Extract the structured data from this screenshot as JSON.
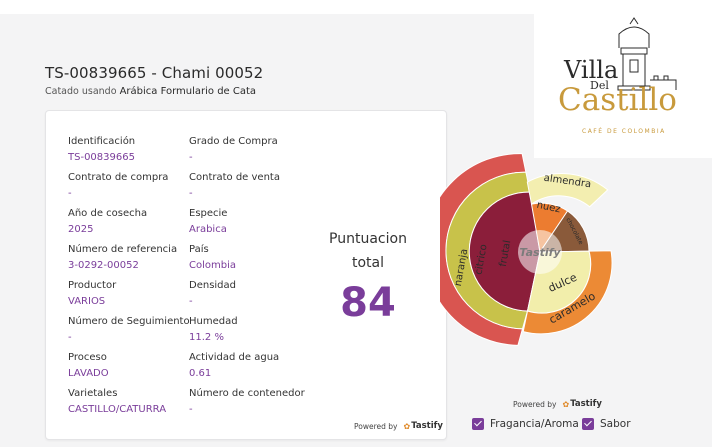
{
  "header": {
    "title": "TS-00839665 - Chami 00052",
    "subtitle_prefix": "Catado usando",
    "subtitle_form": "Arábica Formulario de Cata"
  },
  "fields": [
    {
      "label": "Identificación",
      "value": "TS-00839665"
    },
    {
      "label": "Grado de Compra",
      "value": "-"
    },
    {
      "label": "Contrato de compra",
      "value": "-"
    },
    {
      "label": "Contrato de venta",
      "value": "-"
    },
    {
      "label": "Año de cosecha",
      "value": "2025"
    },
    {
      "label": "Especie",
      "value": "Arabica"
    },
    {
      "label": "Número de referencia",
      "value": "3-0292-00052"
    },
    {
      "label": "País",
      "value": "Colombia"
    },
    {
      "label": "Productor",
      "value": "VARIOS"
    },
    {
      "label": "Densidad",
      "value": "-"
    },
    {
      "label": "Número de Seguimiento",
      "value": "-"
    },
    {
      "label": "Humedad",
      "value": "11.2 %"
    },
    {
      "label": "Proceso",
      "value": "LAVADO"
    },
    {
      "label": "Actividad de agua",
      "value": "0.61"
    },
    {
      "label": "Varietales",
      "value": "CASTILLO/CATURRA"
    },
    {
      "label": "Número de contenedor",
      "value": "-"
    }
  ],
  "score": {
    "label_line1": "Puntuacion",
    "label_line2": "total",
    "value": "84"
  },
  "powered": {
    "text": "Powered by",
    "brand": "Tastify"
  },
  "logo": {
    "line1": "Villa",
    "line2": "Del",
    "line3": "Castillo",
    "tagline": "CAFÉ DE COLOMBIA"
  },
  "wheel": {
    "center_label": "Tastify",
    "segments": [
      {
        "name": "naranja",
        "ring": "outer",
        "color": "#d95550"
      },
      {
        "name": "citrico",
        "ring": "middle",
        "color": "#c8c24a"
      },
      {
        "name": "frutal",
        "ring": "inner",
        "color": "#8b1e3a"
      },
      {
        "name": "almendra",
        "ring": "outer",
        "color": "#f3eeb0"
      },
      {
        "name": "nuez",
        "ring": "middle",
        "color": "#ec7c30"
      },
      {
        "name": "chocolate",
        "ring": "middle",
        "color": "#8a5a3a"
      },
      {
        "name": "dulce",
        "ring": "middle",
        "color": "#f2eeab"
      },
      {
        "name": "caramelo",
        "ring": "outer",
        "color": "#ec8a35"
      }
    ]
  },
  "legend": [
    {
      "label": "Fragancia/Aroma",
      "checked": true
    },
    {
      "label": "Sabor",
      "checked": true
    }
  ],
  "colors": {
    "accent": "#7a3d9a",
    "logo_gold": "#c89a3c"
  }
}
